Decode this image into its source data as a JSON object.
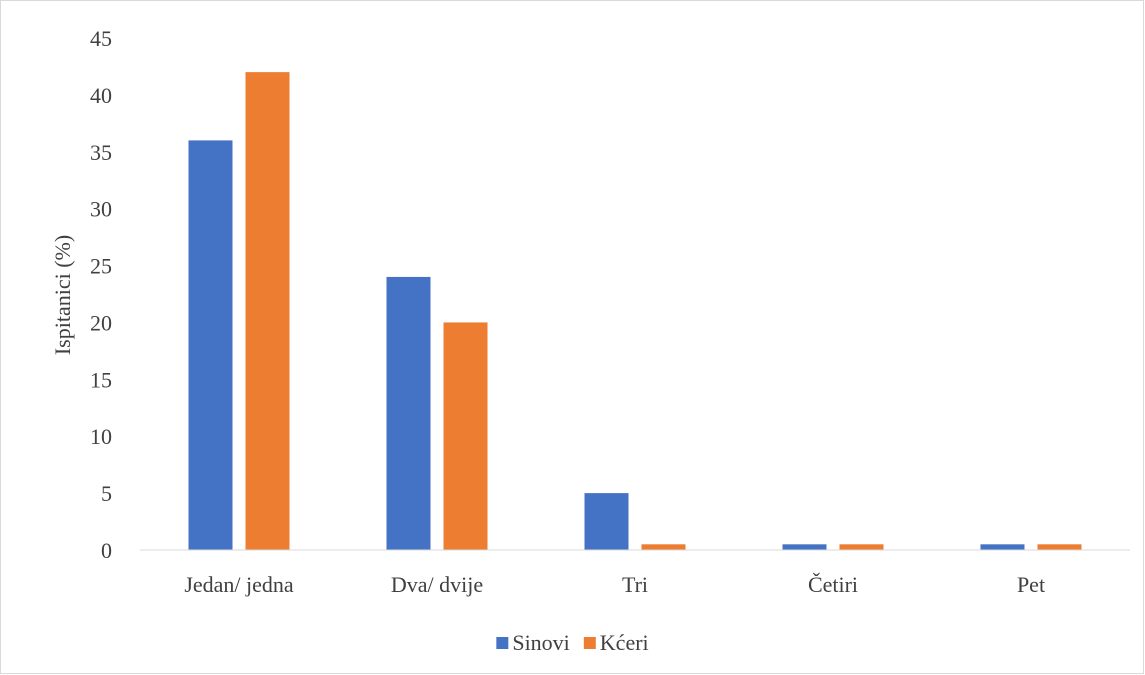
{
  "chart_data": {
    "type": "bar",
    "title": "",
    "xlabel": "",
    "ylabel": "Ispitanici (%)",
    "ylim": [
      0,
      45
    ],
    "yticks": [
      0,
      5,
      10,
      15,
      20,
      25,
      30,
      35,
      40,
      45
    ],
    "grid": false,
    "legend_position": "bottom",
    "categories": [
      "Jedan/ jedna",
      "Dva/ dvije",
      "Tri",
      "Četiri",
      "Pet"
    ],
    "series": [
      {
        "name": "Sinovi",
        "color": "#4472c4",
        "values": [
          36,
          24,
          5,
          0.5,
          0.5
        ]
      },
      {
        "name": "Kćeri",
        "color": "#ed7d31",
        "values": [
          42,
          20,
          0.5,
          0.5,
          0.5
        ]
      }
    ]
  }
}
